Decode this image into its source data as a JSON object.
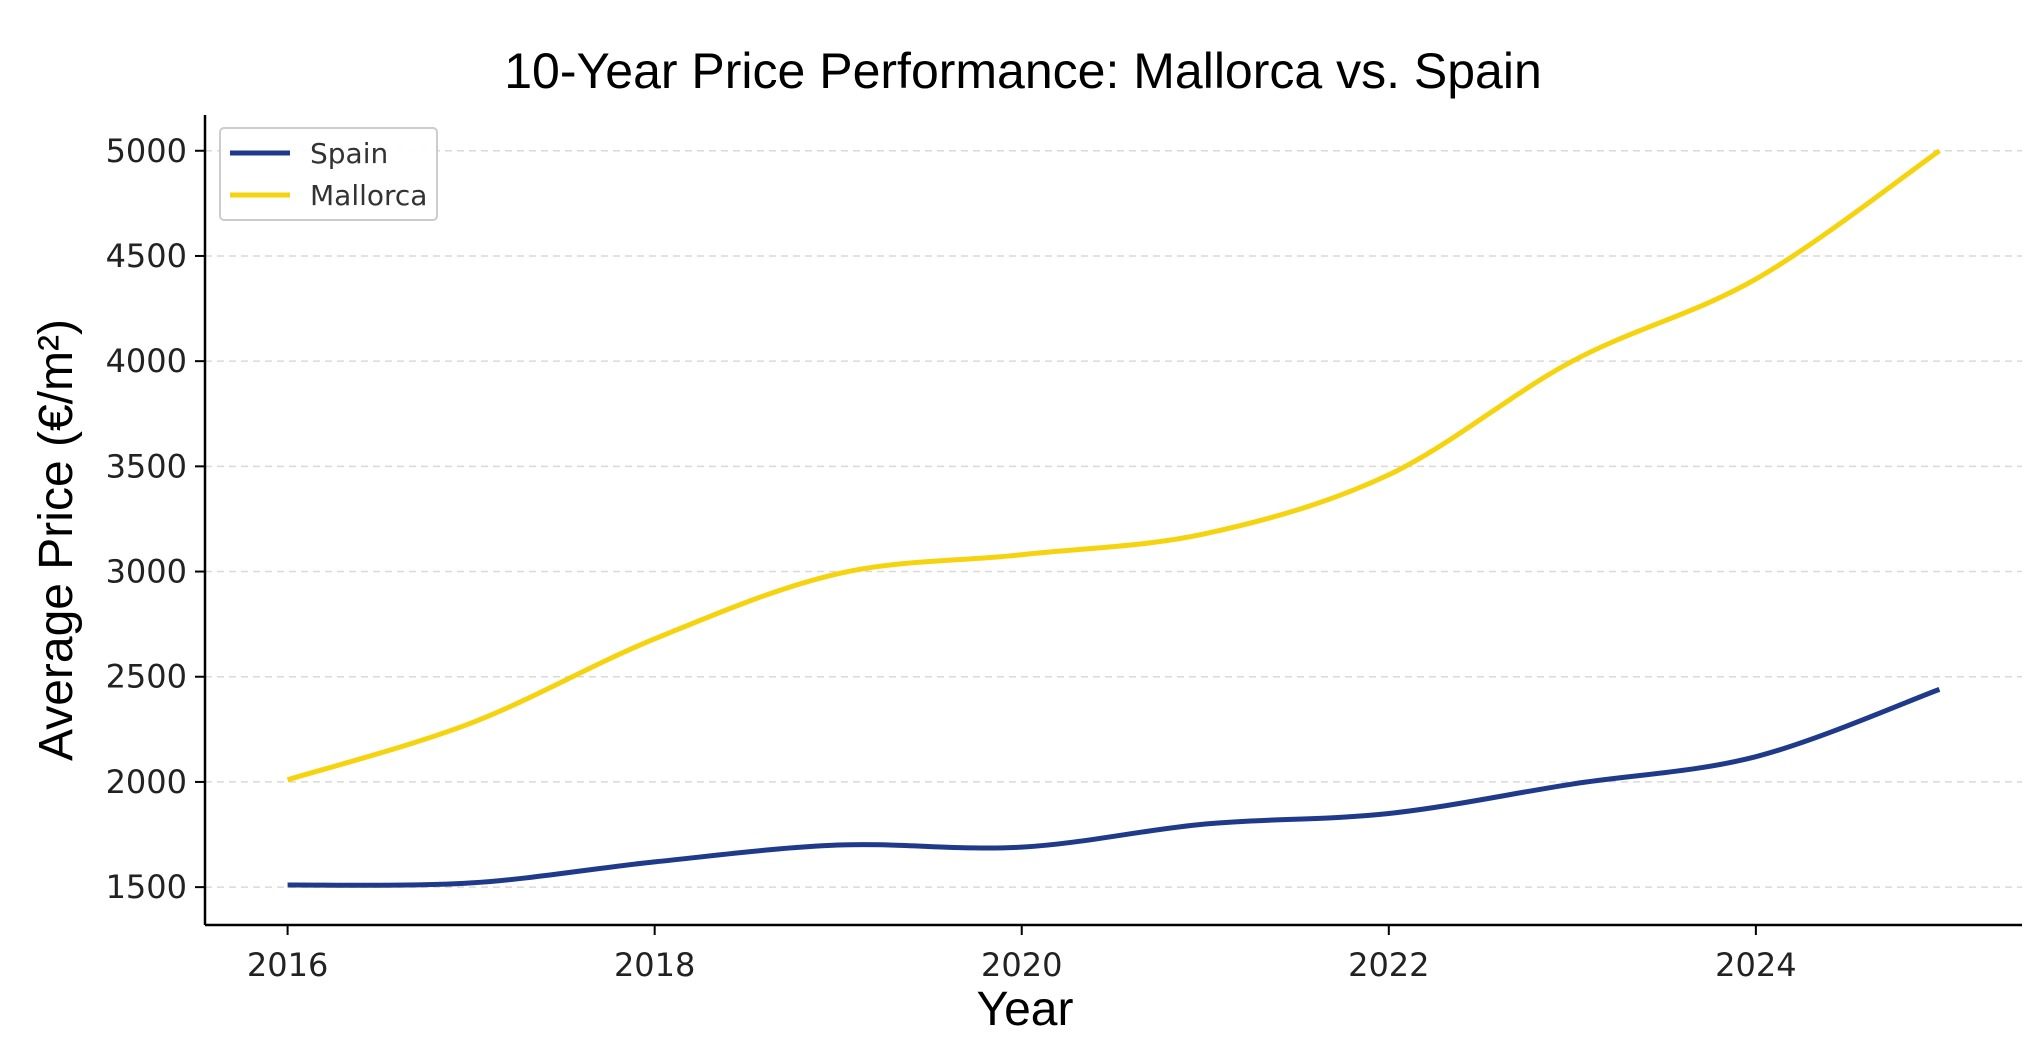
{
  "chart_data": {
    "type": "line",
    "title": "10-Year Price Performance: Mallorca vs. Spain",
    "xlabel": "Year",
    "ylabel": "Average Price (€/m²)",
    "xlim": [
      2015.55,
      2025.45
    ],
    "ylim": [
      1320,
      5170
    ],
    "xticks": [
      2016,
      2018,
      2020,
      2022,
      2024
    ],
    "yticks": [
      1500,
      2000,
      2500,
      3000,
      3500,
      4000,
      4500,
      5000
    ],
    "grid": "horizontal dashed",
    "legend_position": "top-left",
    "x": [
      2016,
      2017,
      2018,
      2019,
      2020,
      2021,
      2022,
      2023,
      2024,
      2025
    ],
    "series": [
      {
        "name": "Spain",
        "color": "#1f3a8a",
        "values": [
          1510,
          1520,
          1620,
          1700,
          1690,
          1800,
          1850,
          1990,
          2120,
          2440
        ]
      },
      {
        "name": "Mallorca",
        "color": "#f5d40f",
        "values": [
          2010,
          2280,
          2680,
          2990,
          3080,
          3180,
          3460,
          4000,
          4390,
          5000
        ]
      }
    ]
  }
}
